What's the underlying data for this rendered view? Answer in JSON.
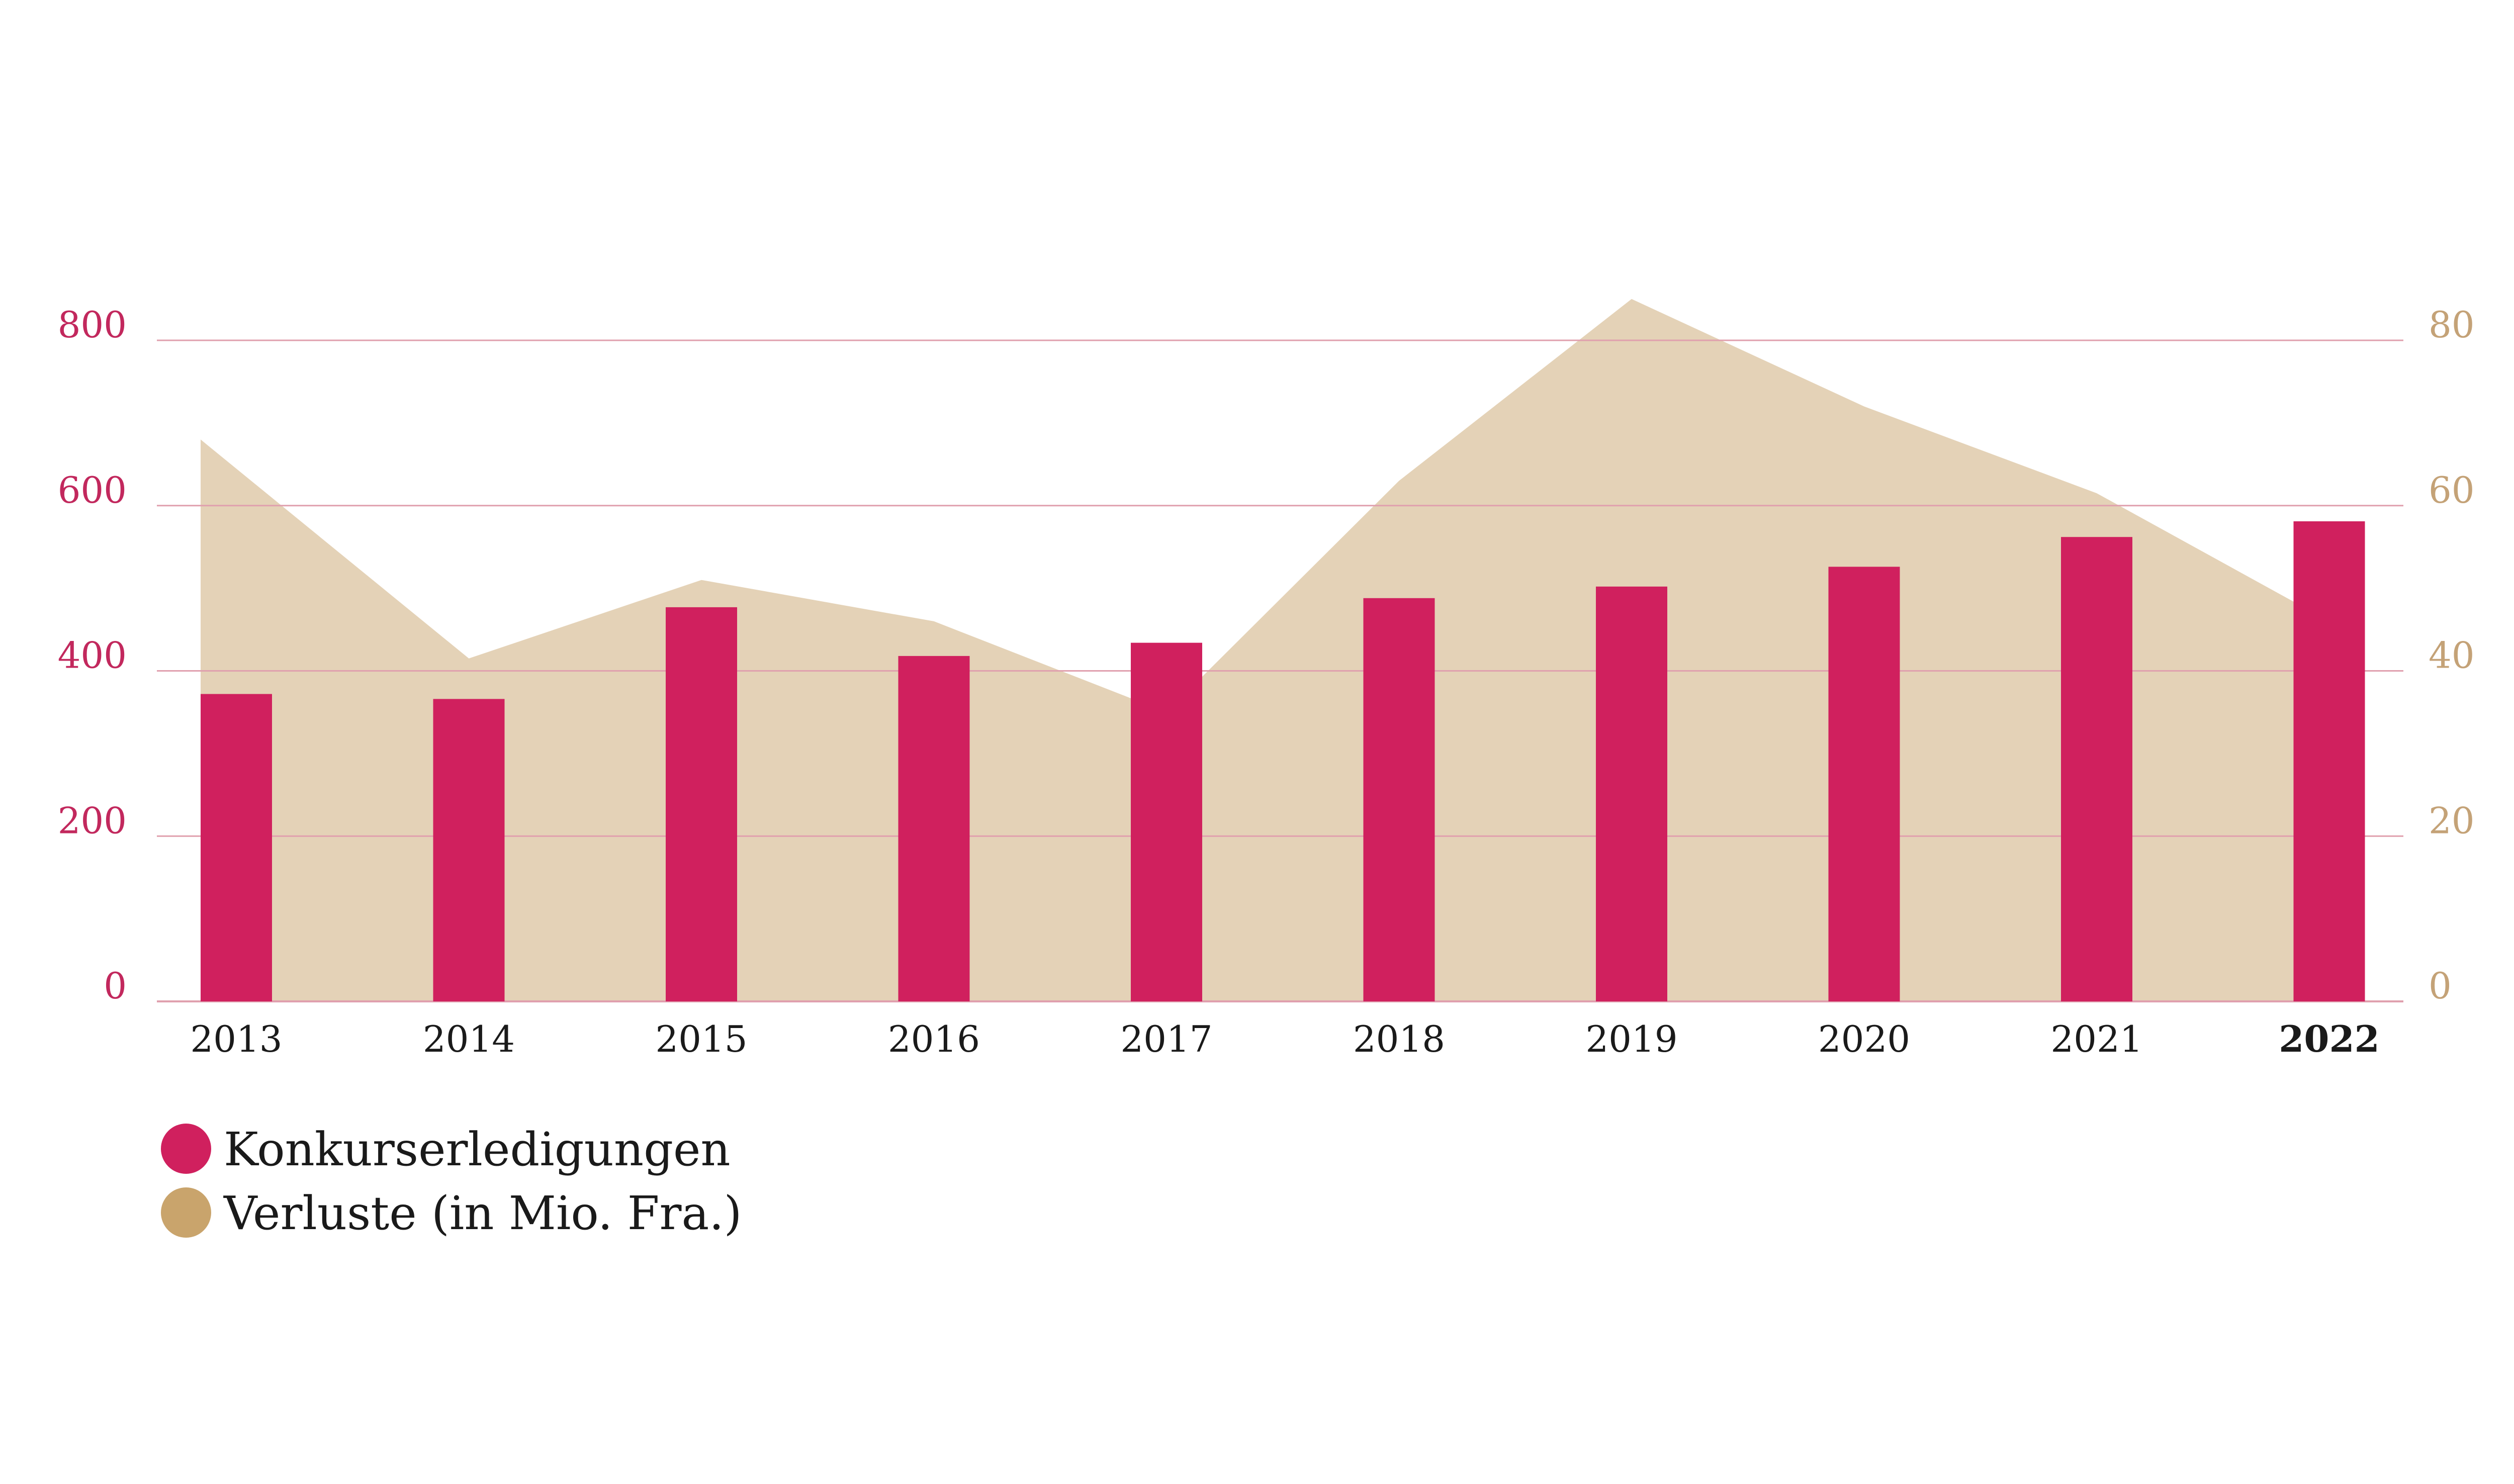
{
  "chart_data": {
    "type": "bar",
    "categories": [
      "2013",
      "2014",
      "2015",
      "2016",
      "2017",
      "2018",
      "2019",
      "2020",
      "2021",
      "2022"
    ],
    "highlight_category": "2022",
    "series": [
      {
        "name": "Konkurserledigungen",
        "type": "bar",
        "axis": "left",
        "color": "#d0205e",
        "values": [
          372,
          366,
          477,
          418,
          434,
          488,
          502,
          526,
          562,
          581
        ]
      },
      {
        "name": "Verluste (in Mio. Fra.)",
        "type": "area",
        "axis": "right",
        "color": "#e4d2b7",
        "legend_color": "#c9a46c",
        "values": [
          68,
          41.5,
          51,
          46,
          35,
          63,
          85,
          72,
          61.5,
          46
        ]
      }
    ],
    "y_left": {
      "ylim": [
        0,
        800
      ],
      "ticks": [
        "0",
        "200",
        "400",
        "600",
        "800"
      ],
      "color": "#c2285d"
    },
    "y_right": {
      "ylim": [
        0,
        80
      ],
      "ticks": [
        "0",
        "20",
        "40",
        "60",
        "80"
      ],
      "color": "#c4a277"
    },
    "grid": true,
    "grid_color": "#e0a0ae",
    "legend_position": "bottom-left"
  }
}
